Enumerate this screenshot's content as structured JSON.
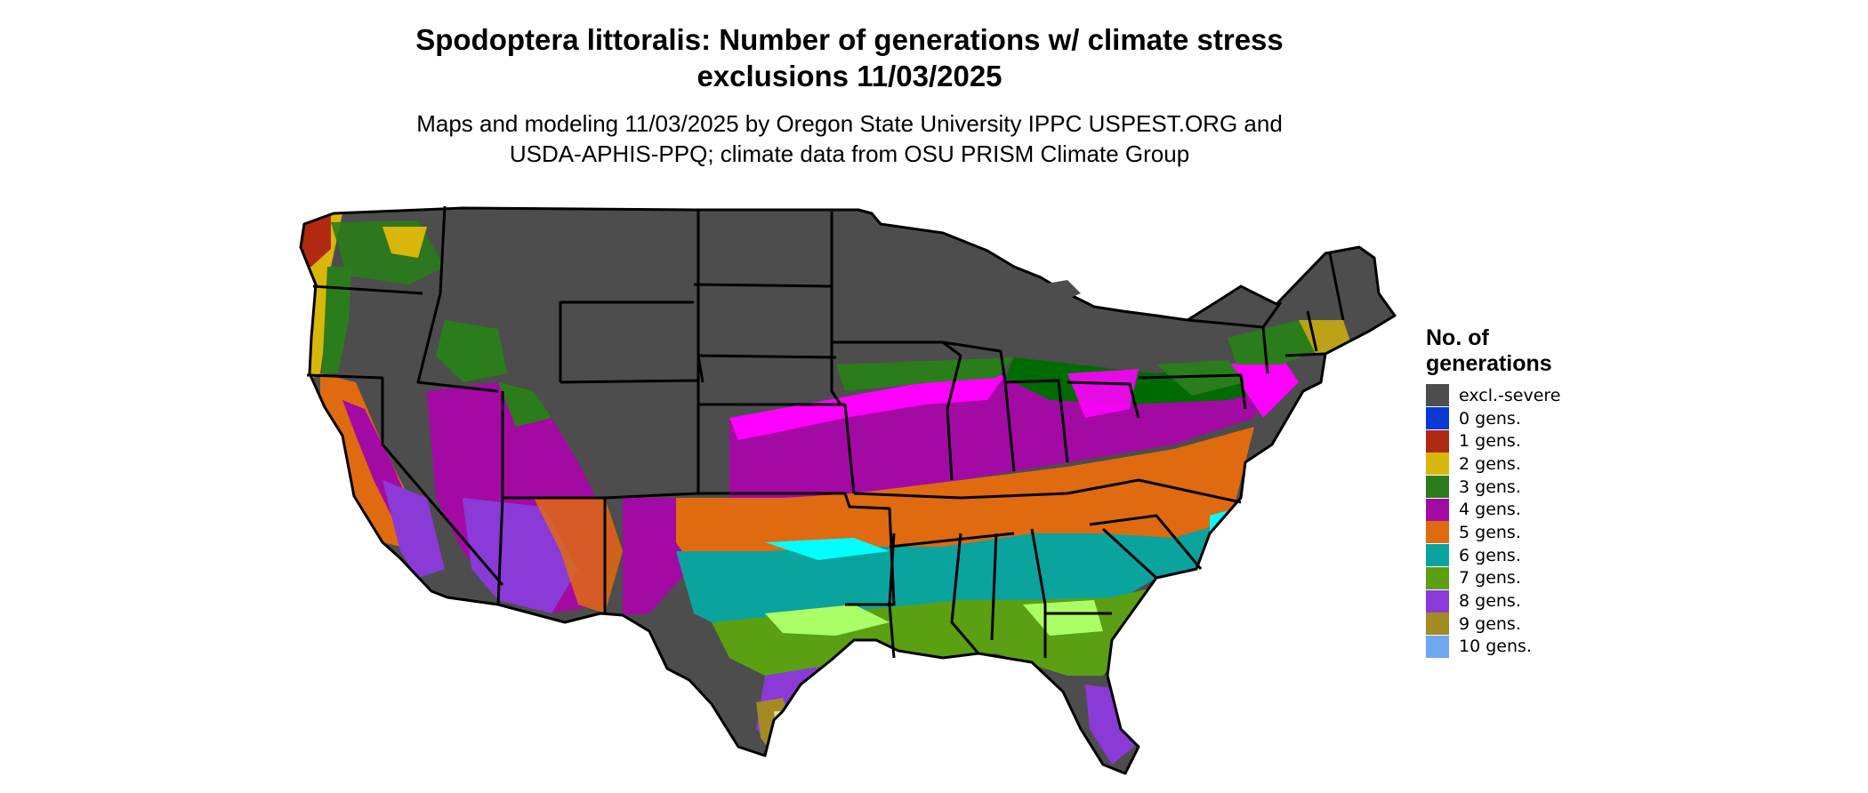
{
  "title_line1": "Spodoptera littoralis: Number of generations w/ climate stress",
  "title_line2": "exclusions 11/03/2025",
  "subtitle_line1": "Maps and modeling 11/03/2025 by Oregon State University IPPC USPEST.ORG and",
  "subtitle_line2": "USDA-APHIS-PPQ; climate data from OSU PRISM Climate Group",
  "legend": {
    "title_line1": "No. of",
    "title_line2": "generations",
    "items": [
      {
        "label": "excl.-severe",
        "color": "#4d4d4d"
      },
      {
        "label": "0 gens.",
        "color": "#0a3ad6"
      },
      {
        "label": "1 gens.",
        "color": "#b02a12"
      },
      {
        "label": "2 gens.",
        "color": "#d9b70a"
      },
      {
        "label": "3 gens.",
        "color": "#2a7d1a"
      },
      {
        "label": "4 gens.",
        "color": "#a30aa3"
      },
      {
        "label": "5 gens.",
        "color": "#e06a10"
      },
      {
        "label": "6 gens.",
        "color": "#0ba39e"
      },
      {
        "label": "7 gens.",
        "color": "#5aa012"
      },
      {
        "label": "8 gens.",
        "color": "#8a3ad6"
      },
      {
        "label": "9 gens.",
        "color": "#a38a22"
      },
      {
        "label": "10 gens.",
        "color": "#6fa8f0"
      }
    ]
  }
}
